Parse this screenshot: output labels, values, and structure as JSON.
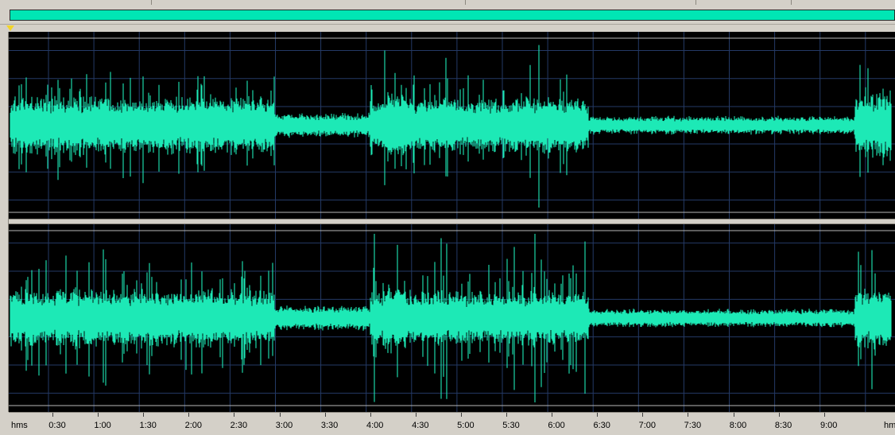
{
  "overview": {
    "bar_color": "#00e6b4"
  },
  "playhead": {
    "icon": "cursor-triangle-icon",
    "color": "#f2d42a"
  },
  "waveform": {
    "color": "#1de9b6",
    "background": "#000000",
    "grid_color": "#243a66",
    "channels": [
      "top",
      "bottom"
    ]
  },
  "timeline": {
    "unit_left": "hms",
    "unit_right": "hms",
    "ticks": [
      "0:30",
      "1:00",
      "1:30",
      "2:00",
      "2:30",
      "3:00",
      "3:30",
      "4:00",
      "4:30",
      "5:00",
      "5:30",
      "6:00",
      "6:30",
      "7:00",
      "7:30",
      "8:00",
      "8:30",
      "9:00"
    ]
  }
}
